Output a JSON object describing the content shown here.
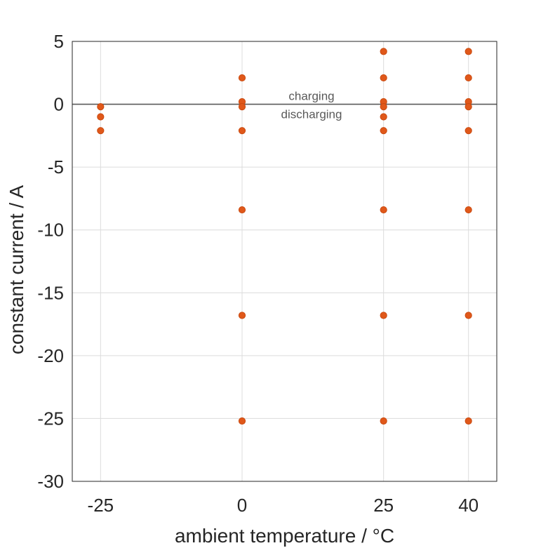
{
  "chart_data": {
    "type": "scatter",
    "xlabel": "ambient temperature / °C",
    "ylabel": "constant current / A",
    "x_ticks": [
      -25,
      0,
      25,
      40
    ],
    "x_tick_labels": [
      "-25",
      "0",
      "25",
      "40"
    ],
    "y_ticks": [
      5,
      0,
      -5,
      -10,
      -15,
      -20,
      -25,
      -30
    ],
    "y_tick_labels": [
      "5",
      "0",
      "-5",
      "-10",
      "-15",
      "-20",
      "-25",
      "-30"
    ],
    "xlim": [
      -30,
      45
    ],
    "ylim": [
      -30,
      5
    ],
    "grid": true,
    "reference_line_y": 0,
    "annotations": {
      "above": "charging",
      "below": "discharging"
    },
    "marker_color": "#e0581a",
    "points": [
      {
        "x": -25,
        "y": -0.2
      },
      {
        "x": -25,
        "y": -1.0
      },
      {
        "x": -25,
        "y": -2.1
      },
      {
        "x": 0,
        "y": 2.1
      },
      {
        "x": 0,
        "y": 0.2
      },
      {
        "x": 0,
        "y": -0.2
      },
      {
        "x": 0,
        "y": -2.1
      },
      {
        "x": 0,
        "y": -8.4
      },
      {
        "x": 0,
        "y": -16.8
      },
      {
        "x": 0,
        "y": -25.2
      },
      {
        "x": 25,
        "y": 4.2
      },
      {
        "x": 25,
        "y": 2.1
      },
      {
        "x": 25,
        "y": 0.2
      },
      {
        "x": 25,
        "y": -0.2
      },
      {
        "x": 25,
        "y": -1.0
      },
      {
        "x": 25,
        "y": -2.1
      },
      {
        "x": 25,
        "y": -8.4
      },
      {
        "x": 25,
        "y": -16.8
      },
      {
        "x": 25,
        "y": -25.2
      },
      {
        "x": 40,
        "y": 4.2
      },
      {
        "x": 40,
        "y": 2.1
      },
      {
        "x": 40,
        "y": 0.2
      },
      {
        "x": 40,
        "y": -0.2
      },
      {
        "x": 40,
        "y": -2.1
      },
      {
        "x": 40,
        "y": -8.4
      },
      {
        "x": 40,
        "y": -16.8
      },
      {
        "x": 40,
        "y": -25.2
      }
    ]
  }
}
